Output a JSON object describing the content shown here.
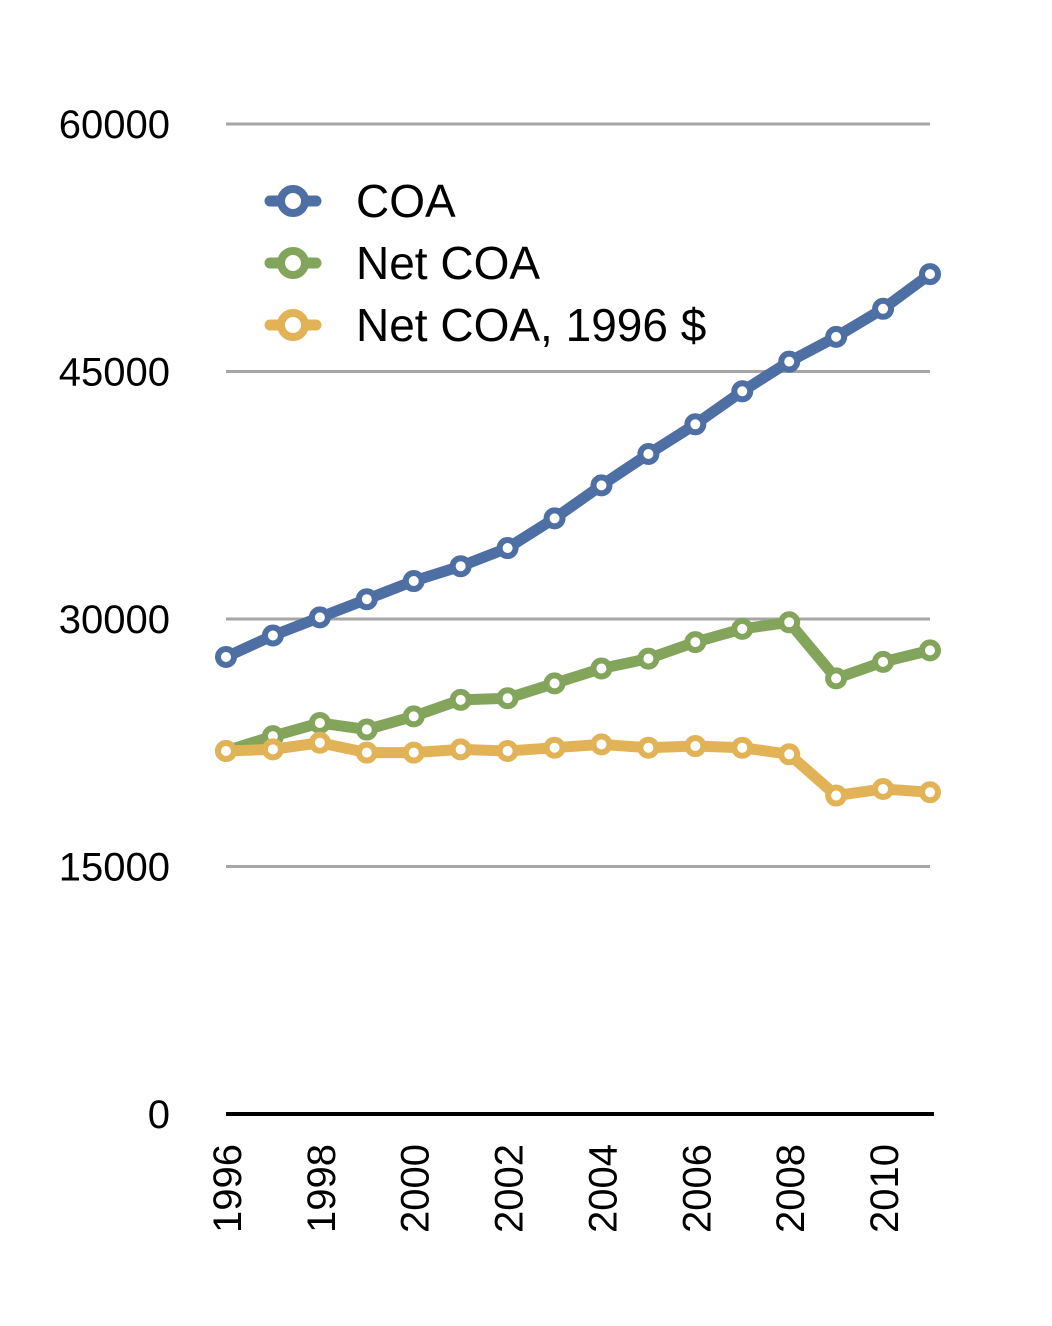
{
  "chart_data": {
    "type": "line",
    "x": [
      1996,
      1997,
      1998,
      1999,
      2000,
      2001,
      2002,
      2003,
      2004,
      2005,
      2006,
      2007,
      2008,
      2009,
      2010,
      2011
    ],
    "x_tick_labels": [
      "1996",
      "1998",
      "2000",
      "2002",
      "2004",
      "2006",
      "2008",
      "2010"
    ],
    "y_tick_labels": [
      "0",
      "15000",
      "30000",
      "45000",
      "60000"
    ],
    "ylim": [
      0,
      60000
    ],
    "grid": true,
    "legend_position": "top-left",
    "title": "",
    "xlabel": "",
    "ylabel": "",
    "series": [
      {
        "name": "COA",
        "color": "#4e6fa3",
        "values": [
          27700,
          29000,
          30100,
          31200,
          32300,
          33200,
          34300,
          36100,
          38100,
          40000,
          41800,
          43800,
          45600,
          47100,
          48800,
          50900
        ]
      },
      {
        "name": "Net COA",
        "color": "#82a55b",
        "values": [
          22000,
          22900,
          23700,
          23300,
          24100,
          25100,
          25200,
          26100,
          27000,
          27600,
          28600,
          29400,
          29800,
          26400,
          27400,
          28100
        ]
      },
      {
        "name": "Net COA, 1996 $",
        "color": "#e2b356",
        "values": [
          22000,
          22100,
          22500,
          21900,
          21900,
          22100,
          22000,
          22200,
          22400,
          22200,
          22300,
          22200,
          21800,
          19300,
          19700,
          19500
        ]
      }
    ]
  }
}
